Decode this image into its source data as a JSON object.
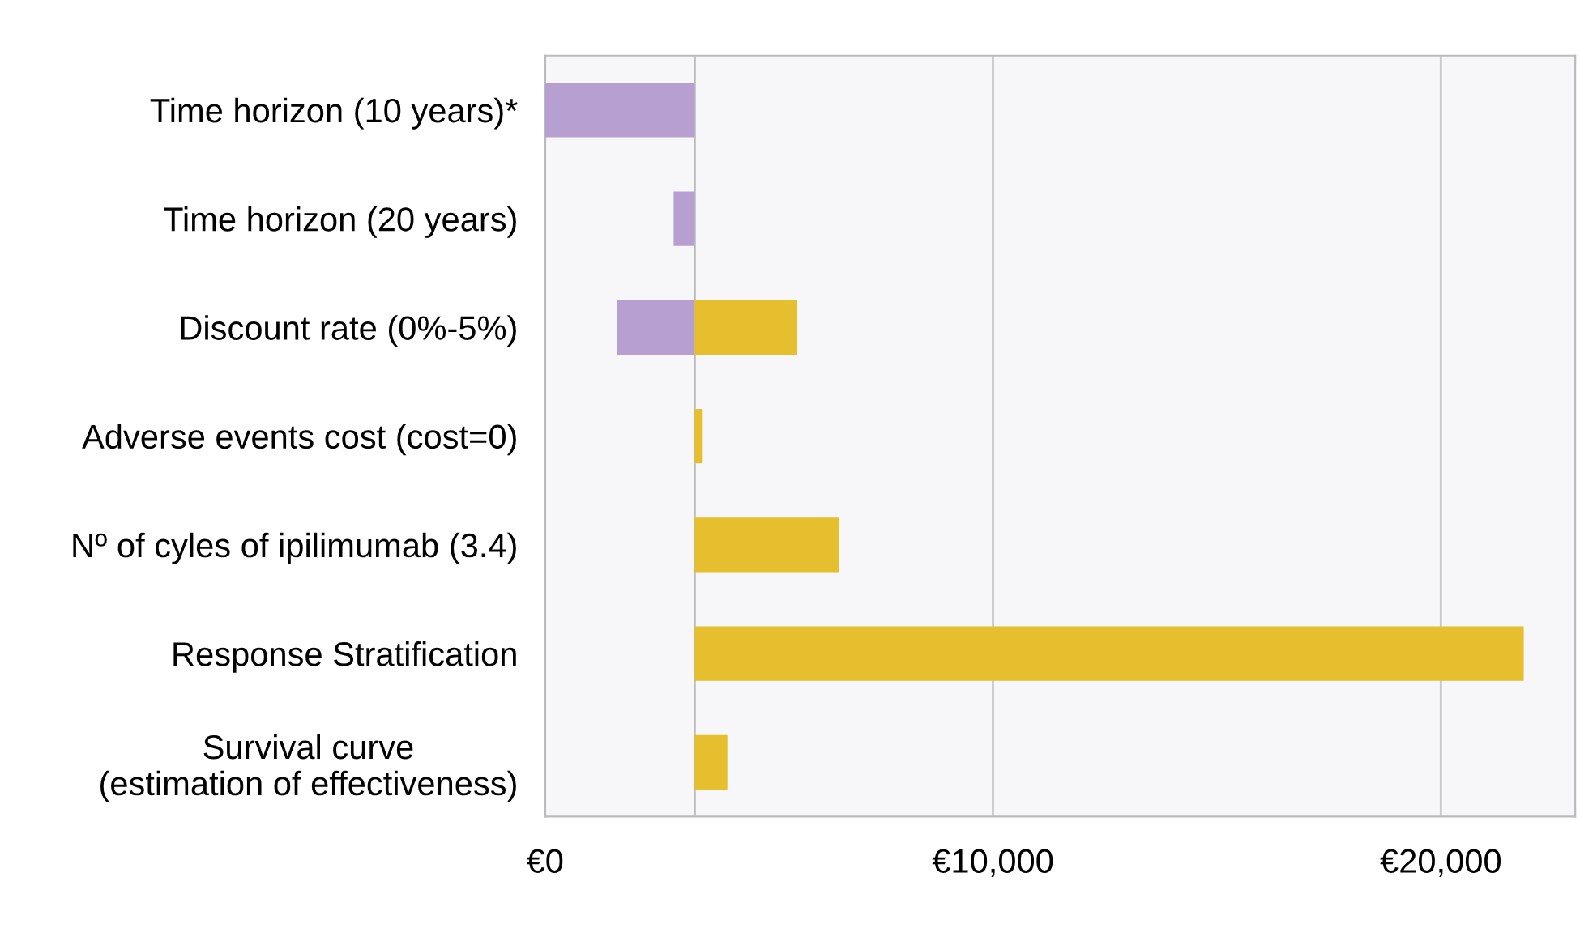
{
  "chart_data": {
    "type": "bar",
    "orientation": "horizontal",
    "categories": [
      "Time horizon (10 years)*",
      "Time horizon (20 years)",
      "Discount rate (0%-5%)",
      "Adverse events cost (cost=0)",
      "Nº of cyles of ipilimumab (3.4)",
      "Response Stratification",
      "Survival curve\n(estimation of effectiveness)"
    ],
    "series": [
      {
        "color": "#b89fd2",
        "values": [
          3340,
          470,
          1740,
          null,
          null,
          null,
          null
        ],
        "base": [
          0,
          2870,
          1600,
          null,
          null,
          null,
          null
        ]
      },
      {
        "color": "#e6bf2e",
        "values": [
          null,
          null,
          2290,
          180,
          3230,
          18510,
          730
        ],
        "base": [
          null,
          null,
          3340,
          3340,
          3340,
          3340,
          3340
        ]
      }
    ],
    "xlim": [
      0,
      23000
    ],
    "xticks": [
      {
        "value": 0,
        "label": "€0"
      },
      {
        "value": 10000,
        "label": "€10,000"
      },
      {
        "value": 20000,
        "label": "€20,000"
      }
    ],
    "ref_lines": [
      {
        "axis": "x",
        "value": 3340,
        "color": "#bbbbbb"
      }
    ],
    "grid": "x"
  }
}
